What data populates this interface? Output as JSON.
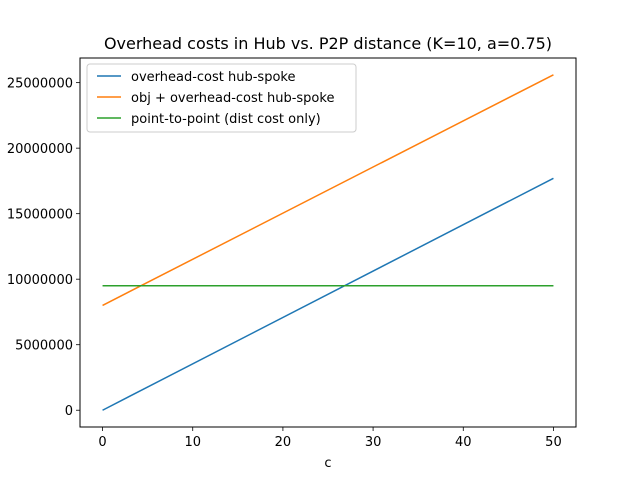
{
  "chart_data": {
    "type": "line",
    "title": "Overhead costs in Hub vs. P2P distance (K=10, a=0.75)",
    "xlabel": "c",
    "ylabel": "",
    "xlim": [
      -2.5,
      52.5
    ],
    "ylim": [
      -1280000,
      26880000
    ],
    "xticks": [
      0,
      10,
      20,
      30,
      40,
      50
    ],
    "yticks": [
      0,
      5000000,
      10000000,
      15000000,
      20000000,
      25000000
    ],
    "ytick_labels": [
      "0",
      "5000000",
      "10000000",
      "15000000",
      "20000000",
      "25000000"
    ],
    "grid": false,
    "legend_position": "top-left",
    "x": [
      0,
      50
    ],
    "series": [
      {
        "name": "overhead-cost hub-spoke",
        "color": "#1f77b4",
        "values": [
          0,
          17700000
        ]
      },
      {
        "name": "obj + overhead-cost hub-spoke",
        "color": "#ff7f0e",
        "values": [
          8000000,
          25600000
        ]
      },
      {
        "name": "point-to-point (dist cost only)",
        "color": "#2ca02c",
        "values": [
          9500000,
          9500000
        ]
      }
    ]
  }
}
